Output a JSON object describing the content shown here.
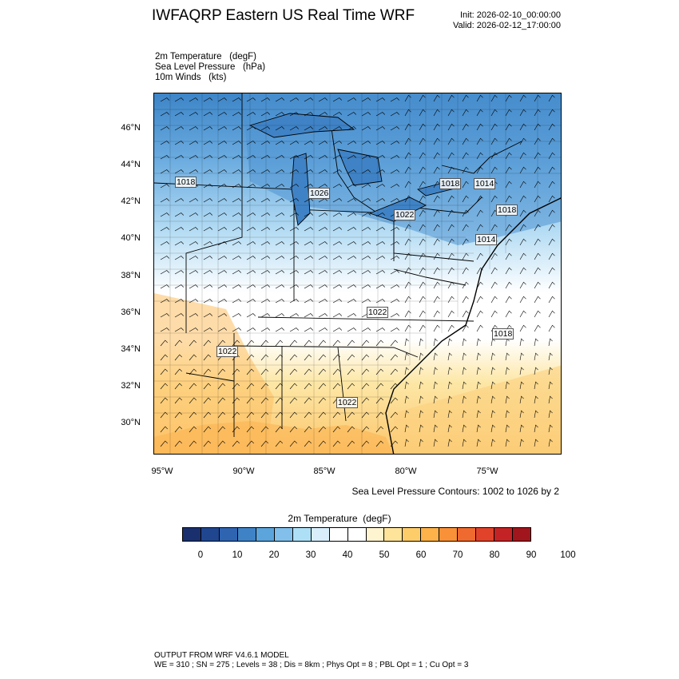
{
  "header": {
    "title": "IWFAQRP Eastern US Real Time WRF",
    "init": "Init: 2026-02-10_00:00:00",
    "valid": "Valid: 2026-02-12_17:00:00"
  },
  "fields": {
    "line1": "2m Temperature   (degF)",
    "line2": "Sea Level Pressure   (hPa)",
    "line3": "10m Winds   (kts)"
  },
  "axes": {
    "lat_labels": [
      "46°N",
      "44°N",
      "42°N",
      "40°N",
      "38°N",
      "36°N",
      "34°N",
      "32°N",
      "30°N"
    ],
    "lon_labels": [
      "95°W",
      "90°W",
      "85°W",
      "80°W",
      "75°W"
    ]
  },
  "slp_labels": [
    "1018",
    "1026",
    "1018",
    "1014",
    "1022",
    "1018",
    "1014",
    "1022",
    "1018",
    "1022",
    "1022"
  ],
  "contour_note": "Sea Level Pressure Contours: 1002 to 1026 by 2",
  "colorbar": {
    "title": "2m Temperature  (degF)",
    "labels": [
      "0",
      "10",
      "20",
      "30",
      "40",
      "50",
      "60",
      "70",
      "80",
      "90",
      "100"
    ],
    "colors": [
      "#1a2f6e",
      "#20468f",
      "#2f64b1",
      "#3f83c6",
      "#5ca4dc",
      "#82c0eb",
      "#ade0f6",
      "#d8eefb",
      "#ffffff",
      "#ffffff",
      "#fff4d0",
      "#fee39a",
      "#fdcd6a",
      "#fdb24a",
      "#f99138",
      "#ef6a2e",
      "#e0432a",
      "#c42325",
      "#a0161c"
    ]
  },
  "footer": {
    "line1": "OUTPUT FROM WRF V4.6.1 MODEL",
    "line2": "WE = 310 ; SN = 275 ; Levels = 38 ; Dis = 8km ; Phys Opt = 8 ; PBL Opt = 1 ; Cu Opt = 3"
  }
}
